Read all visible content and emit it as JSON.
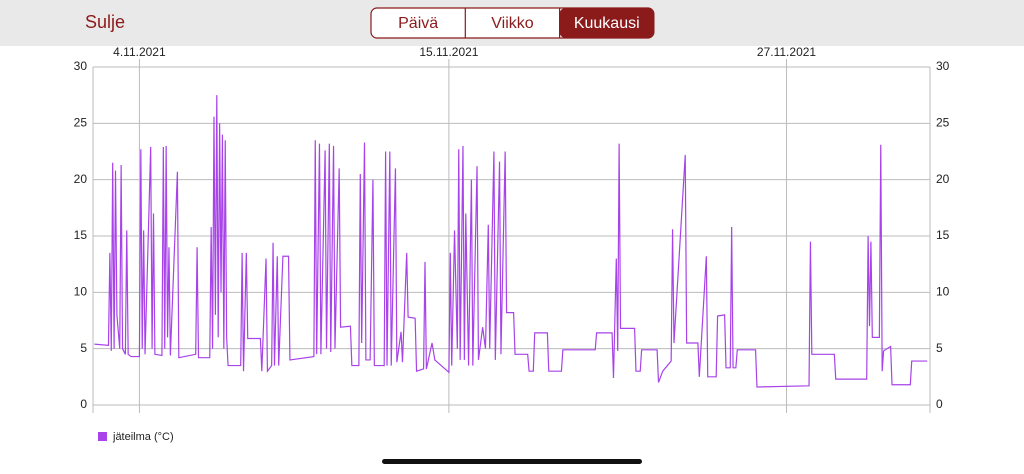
{
  "header": {
    "close": "Sulje",
    "tabs": [
      "Päivä",
      "Viikko",
      "Kuukausi"
    ],
    "selected_tab": 2
  },
  "chart_data": {
    "type": "line",
    "x": [
      2.4,
      2.9,
      2.95,
      3.0,
      3.05,
      3.1,
      3.15,
      3.2,
      3.3,
      3.35,
      3.4,
      3.5,
      3.55,
      3.6,
      3.7,
      4.0,
      4.05,
      4.1,
      4.15,
      4.2,
      4.4,
      4.45,
      4.5,
      4.55,
      4.8,
      4.85,
      4.9,
      4.95,
      5.0,
      5.05,
      5.1,
      5.35,
      5.4,
      6.0,
      6.05,
      6.1,
      6.5,
      6.55,
      6.6,
      6.65,
      6.7,
      6.75,
      6.8,
      6.85,
      6.9,
      6.95,
      7.0,
      7.05,
      7.1,
      7.15,
      7.6,
      7.65,
      7.7,
      7.8,
      7.85,
      8.3,
      8.35,
      8.5,
      8.55,
      8.7,
      8.75,
      8.8,
      8.9,
      8.95,
      9.1,
      9.3,
      9.35,
      10.2,
      10.25,
      10.3,
      10.4,
      10.45,
      10.6,
      10.65,
      10.75,
      10.8,
      10.9,
      10.95,
      11.1,
      11.15,
      11.5,
      11.55,
      11.8,
      11.85,
      11.9,
      12.0,
      12.05,
      12.2,
      12.3,
      12.35,
      12.7,
      12.75,
      12.8,
      12.9,
      12.95,
      13.1,
      13.15,
      13.3,
      13.35,
      13.5,
      13.55,
      13.8,
      13.85,
      14.1,
      14.15,
      14.2,
      14.4,
      14.5,
      15.0,
      15.05,
      15.1,
      15.2,
      15.3,
      15.35,
      15.4,
      15.5,
      15.55,
      15.6,
      15.7,
      15.8,
      15.85,
      16.0,
      16.05,
      16.2,
      16.3,
      16.4,
      16.45,
      16.6,
      16.65,
      16.8,
      16.85,
      17.0,
      17.05,
      17.3,
      17.35,
      17.8,
      17.85,
      18.0,
      18.05,
      18.5,
      18.55,
      19.0,
      19.05,
      20.2,
      20.25,
      20.8,
      20.85,
      20.95,
      21.0,
      21.05,
      21.1,
      21.6,
      21.65,
      21.8,
      21.85,
      22.4,
      22.45,
      22.6,
      22.9,
      22.95,
      23.0,
      23.4,
      23.45,
      23.85,
      23.9,
      24.15,
      24.2,
      24.5,
      24.55,
      24.8,
      24.85,
      25.0,
      25.05,
      25.1,
      25.2,
      25.25,
      25.9,
      25.95,
      27.8,
      27.85,
      27.9,
      28.7,
      28.75,
      29.85,
      29.9,
      29.95,
      30.0,
      30.05,
      30.3,
      30.35,
      30.4,
      30.45,
      30.7,
      30.75,
      31.4,
      31.45,
      32.0
    ],
    "series": [
      {
        "name": "jäteilma (°C)",
        "color": "#a743e8",
        "values": [
          5.4,
          5.3,
          13.5,
          4.8,
          21.5,
          5,
          20.8,
          8,
          5,
          21.3,
          5,
          4.5,
          15.5,
          4.5,
          4.3,
          4.3,
          22.7,
          5,
          15.5,
          4.5,
          22.9,
          5,
          17,
          4.5,
          4.4,
          22.9,
          5,
          23,
          6,
          14,
          4.4,
          20.7,
          4.2,
          4.5,
          14,
          4.2,
          4.2,
          15.8,
          5,
          25.6,
          8,
          27.5,
          6,
          25,
          10,
          24,
          5,
          23.5,
          6,
          3.5,
          3.5,
          13.5,
          3,
          13.5,
          5.9,
          5.9,
          3,
          13,
          3,
          3.5,
          14.4,
          3.5,
          13.2,
          3.5,
          13.2,
          13.2,
          4.0,
          4.3,
          23.5,
          4.5,
          23.2,
          4.5,
          22.6,
          5,
          23.2,
          4.7,
          23,
          5,
          21,
          6.9,
          7,
          3.5,
          3.5,
          20.5,
          5.5,
          23.3,
          4,
          4,
          20,
          3.5,
          3.5,
          22.5,
          3.5,
          22.5,
          3.5,
          21,
          3.8,
          6.5,
          3.8,
          13.5,
          7.8,
          7.7,
          3.0,
          3.2,
          12.7,
          3.2,
          5.5,
          4.0,
          2.9,
          13.5,
          3.5,
          15.5,
          5,
          22.7,
          4,
          23.0,
          4,
          17,
          3.5,
          20,
          3.5,
          21.2,
          4,
          6.9,
          5,
          16,
          5,
          22.5,
          4,
          21.6,
          4.5,
          22.5,
          8.2,
          8.2,
          4.5,
          4.5,
          3,
          3,
          6.4,
          6.4,
          3,
          3,
          4.9,
          4.9,
          6.4,
          6.4,
          2.4,
          13,
          4.8,
          23.2,
          6.8,
          6.8,
          3.0,
          3.0,
          4.9,
          4.9,
          2.0,
          3.0,
          3.9,
          15.6,
          5.5,
          22.2,
          5.5,
          5.5,
          2.5,
          13.2,
          2.5,
          2.5,
          7.9,
          8,
          3.3,
          3.3,
          15.8,
          3.3,
          3.3,
          4.9,
          4.9,
          1.6,
          1.7,
          14.5,
          4.5,
          4.5,
          2.3,
          2.3,
          15.0,
          7,
          14.5,
          6,
          6,
          23.1,
          3,
          4.8,
          5.2,
          1.8,
          1.8,
          3.9,
          3.9
        ]
      }
    ],
    "xlim": [
      2.35,
      32.1
    ],
    "xticks": [
      {
        "value": 4,
        "label": "4.11.2021"
      },
      {
        "value": 15,
        "label": "15.11.2021"
      },
      {
        "value": 27,
        "label": "27.11.2021"
      }
    ],
    "ylim": [
      0,
      30
    ],
    "yticks": [
      0,
      5,
      10,
      15,
      20,
      25,
      30
    ],
    "y2lim": [
      0,
      30
    ],
    "y2ticks": [
      0,
      5,
      10,
      15,
      20,
      25,
      30
    ],
    "grid": true
  }
}
